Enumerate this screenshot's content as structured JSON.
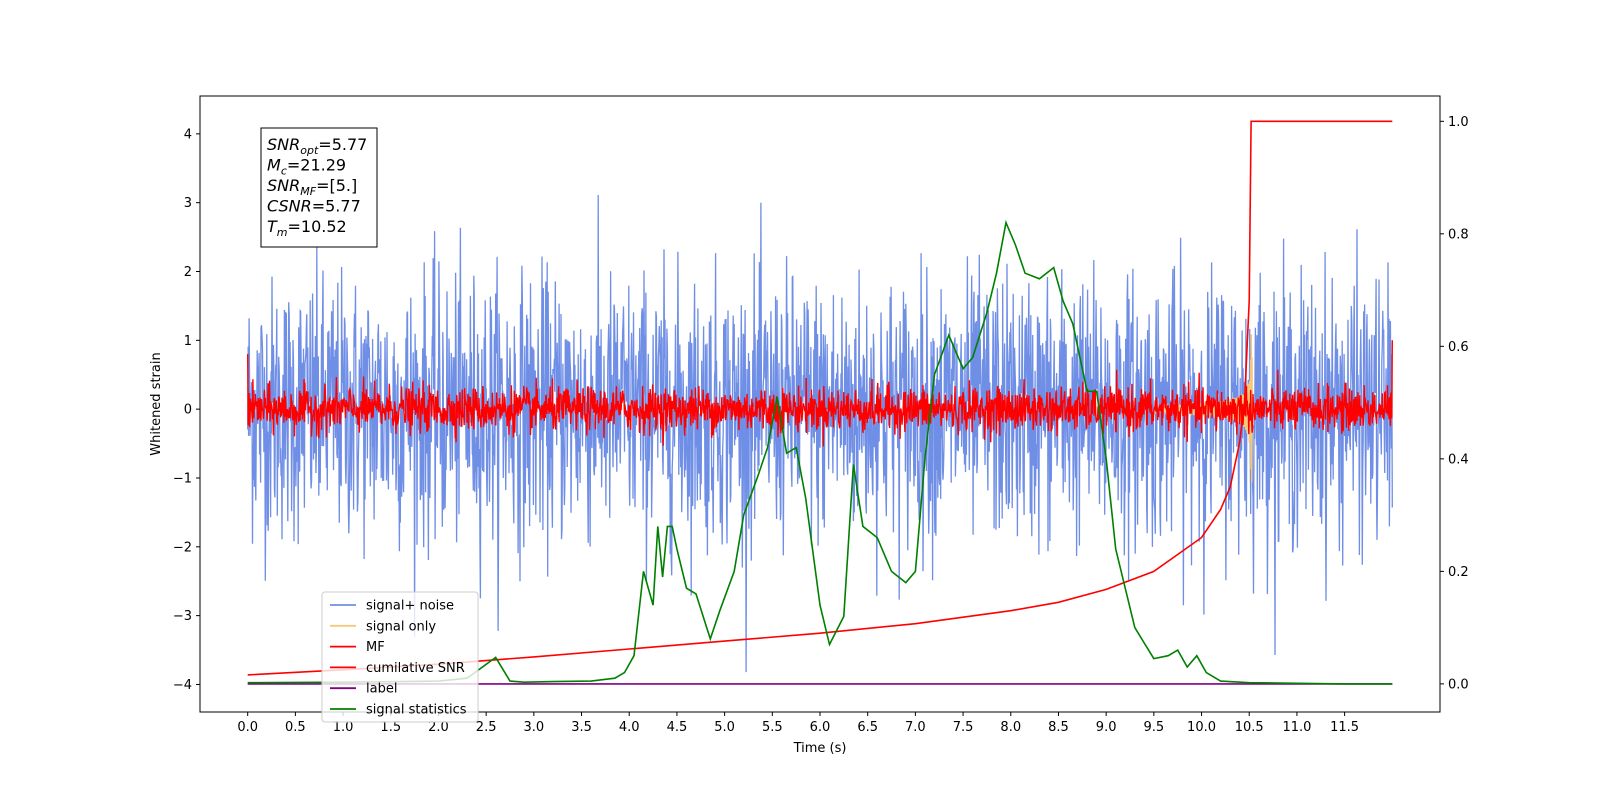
{
  "chart_data": {
    "type": "line",
    "xlabel": "Time (s)",
    "ylabel": "Whitened strain",
    "ylabel_right": "",
    "xlim": [
      -0.5,
      12.5
    ],
    "ylim": [
      -4.4,
      4.55
    ],
    "ylim_right": [
      -0.05,
      1.045
    ],
    "x_ticks": [
      0.0,
      0.5,
      1.0,
      1.5,
      2.0,
      2.5,
      3.0,
      3.5,
      4.0,
      4.5,
      5.0,
      5.5,
      6.0,
      6.5,
      7.0,
      7.5,
      8.0,
      8.5,
      9.0,
      9.5,
      10.0,
      10.5,
      11.0,
      11.5
    ],
    "x_tick_labels": [
      "0.0",
      "0.5",
      "1.0",
      "1.5",
      "2.0",
      "2.5",
      "3.0",
      "3.5",
      "4.0",
      "4.5",
      "5.0",
      "5.5",
      "6.0",
      "6.5",
      "7.0",
      "7.5",
      "8.0",
      "8.5",
      "9.0",
      "9.5",
      "10.0",
      "10.5",
      "11.0",
      "11.5"
    ],
    "y_ticks": [
      -4,
      -3,
      -2,
      -1,
      0,
      1,
      2,
      3,
      4
    ],
    "y_tick_labels": [
      "−4",
      "−3",
      "−2",
      "−1",
      "0",
      "1",
      "2",
      "3",
      "4"
    ],
    "y_ticks_right": [
      0.0,
      0.2,
      0.4,
      0.6,
      0.8,
      1.0
    ],
    "y_tick_labels_right": [
      "0.0",
      "0.2",
      "0.4",
      "0.6",
      "0.8",
      "1.0"
    ],
    "grid": false,
    "legend_placement": "lower-left",
    "series": [
      {
        "name": "signal+ noise",
        "color": "#6f8ee6",
        "axis": "left",
        "description": "noisy whitened strain, roughly ±2.5 with spikes to ±4, 0 to 12 s"
      },
      {
        "name": "signal only",
        "color": "#f5c97a",
        "axis": "left",
        "description": "chirp near 10.5 s, amplitude up to ~1.3"
      },
      {
        "name": "MF",
        "color": "#ff0000",
        "axis": "left",
        "description": "matched filter output, roughly ±0.4 around 0"
      },
      {
        "name": "cumilative SNR",
        "color": "#ff0000",
        "axis": "right",
        "x": [
          0.0,
          1.0,
          2.0,
          3.0,
          4.0,
          5.0,
          6.0,
          7.0,
          8.0,
          8.5,
          9.0,
          9.5,
          10.0,
          10.2,
          10.3,
          10.4,
          10.45,
          10.5,
          10.52,
          12.0
        ],
        "values": [
          0.016,
          0.025,
          0.035,
          0.048,
          0.062,
          0.076,
          0.09,
          0.107,
          0.13,
          0.145,
          0.168,
          0.2,
          0.26,
          0.31,
          0.35,
          0.43,
          0.5,
          0.68,
          1.0,
          1.0
        ]
      },
      {
        "name": "label",
        "color": "#800080",
        "axis": "right",
        "x": [
          0.0,
          12.0
        ],
        "values": [
          0.0,
          0.0
        ]
      },
      {
        "name": "signal statistics",
        "color": "#008000",
        "axis": "right",
        "x": [
          0.0,
          1.0,
          2.0,
          2.3,
          2.6,
          2.75,
          2.9,
          3.2,
          3.6,
          3.85,
          3.95,
          4.05,
          4.15,
          4.25,
          4.3,
          4.35,
          4.4,
          4.45,
          4.5,
          4.6,
          4.7,
          4.85,
          4.95,
          5.1,
          5.2,
          5.35,
          5.45,
          5.55,
          5.65,
          5.75,
          5.85,
          6.0,
          6.1,
          6.25,
          6.35,
          6.45,
          6.6,
          6.75,
          6.9,
          7.0,
          7.05,
          7.1,
          7.2,
          7.35,
          7.5,
          7.6,
          7.75,
          7.85,
          7.95,
          8.05,
          8.15,
          8.3,
          8.45,
          8.55,
          8.65,
          8.8,
          8.9,
          9.0,
          9.1,
          9.3,
          9.5,
          9.65,
          9.75,
          9.85,
          9.95,
          10.05,
          10.2,
          10.5,
          11.0,
          11.5,
          12.0
        ],
        "values": [
          0.002,
          0.003,
          0.005,
          0.01,
          0.047,
          0.005,
          0.003,
          0.004,
          0.005,
          0.01,
          0.02,
          0.05,
          0.2,
          0.14,
          0.28,
          0.19,
          0.28,
          0.28,
          0.24,
          0.17,
          0.16,
          0.08,
          0.13,
          0.2,
          0.3,
          0.37,
          0.42,
          0.51,
          0.41,
          0.42,
          0.33,
          0.14,
          0.07,
          0.12,
          0.39,
          0.28,
          0.26,
          0.2,
          0.18,
          0.2,
          0.3,
          0.4,
          0.55,
          0.62,
          0.56,
          0.58,
          0.66,
          0.73,
          0.82,
          0.78,
          0.73,
          0.72,
          0.74,
          0.68,
          0.64,
          0.52,
          0.52,
          0.4,
          0.24,
          0.1,
          0.045,
          0.05,
          0.06,
          0.03,
          0.05,
          0.02,
          0.005,
          0.002,
          0.001,
          0.0,
          0.0
        ]
      }
    ],
    "annotation_box": {
      "lines": [
        {
          "var": "SNR",
          "sub": "opt",
          "value": "=5.77"
        },
        {
          "var": "M",
          "sub": "c",
          "value": "=21.29"
        },
        {
          "var": "SNR",
          "sub": "MF",
          "value": "=[5.]"
        },
        {
          "var": "CSNR",
          "sub": "",
          "value": "=5.77"
        },
        {
          "var": "T",
          "sub": "m",
          "value": "=10.52"
        }
      ]
    },
    "legend_entries": [
      "signal+ noise",
      "signal only",
      "MF",
      "cumilative SNR",
      "label",
      "signal statistics"
    ]
  }
}
